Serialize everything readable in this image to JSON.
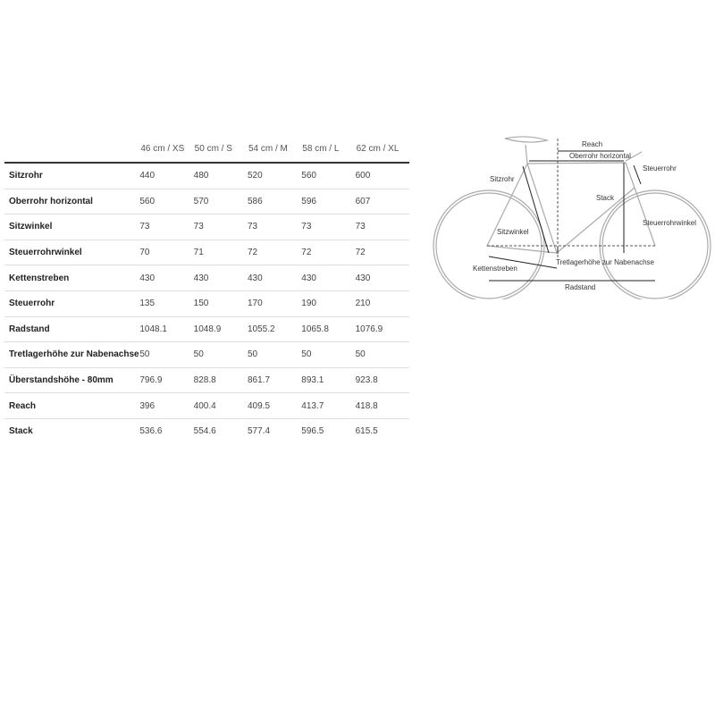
{
  "table": {
    "headers": [
      "46 cm / XS",
      "50 cm / S",
      "54 cm / M",
      "58 cm / L",
      "62 cm / XL"
    ],
    "rows": [
      {
        "label": "Sitzrohr",
        "values": [
          "440",
          "480",
          "520",
          "560",
          "600"
        ]
      },
      {
        "label": "Oberrohr horizontal",
        "values": [
          "560",
          "570",
          "586",
          "596",
          "607"
        ]
      },
      {
        "label": "Sitzwinkel",
        "values": [
          "73",
          "73",
          "73",
          "73",
          "73"
        ]
      },
      {
        "label": "Steuerrohrwinkel",
        "values": [
          "70",
          "71",
          "72",
          "72",
          "72"
        ]
      },
      {
        "label": "Kettenstreben",
        "values": [
          "430",
          "430",
          "430",
          "430",
          "430"
        ]
      },
      {
        "label": "Steuerrohr",
        "values": [
          "135",
          "150",
          "170",
          "190",
          "210"
        ]
      },
      {
        "label": "Radstand",
        "values": [
          "1048.1",
          "1048.9",
          "1055.2",
          "1065.8",
          "1076.9"
        ]
      },
      {
        "label": "Tretlagerhöhe zur Nabenachse",
        "values": [
          "50",
          "50",
          "50",
          "50",
          "50"
        ]
      },
      {
        "label": "Überstandshöhe - 80mm",
        "values": [
          "796.9",
          "828.8",
          "861.7",
          "893.1",
          "923.8"
        ]
      },
      {
        "label": "Reach",
        "values": [
          "396",
          "400.4",
          "409.5",
          "413.7",
          "418.8"
        ]
      },
      {
        "label": "Stack",
        "values": [
          "536.6",
          "554.6",
          "577.4",
          "596.5",
          "615.5"
        ]
      }
    ]
  },
  "diagram": {
    "labels": {
      "reach": "Reach",
      "top_tube": "Oberrohr horizontal",
      "head_tube": "Steuerrohr",
      "seat_tube": "Sitzrohr",
      "stack": "Stack",
      "head_angle": "Steuerrohrwinkel",
      "seat_angle": "Sitzwinkel",
      "bb_drop": "Tretlagerhöhe zur Nabenachse",
      "chainstay": "Kettenstreben",
      "wheelbase": "Radstand"
    }
  }
}
